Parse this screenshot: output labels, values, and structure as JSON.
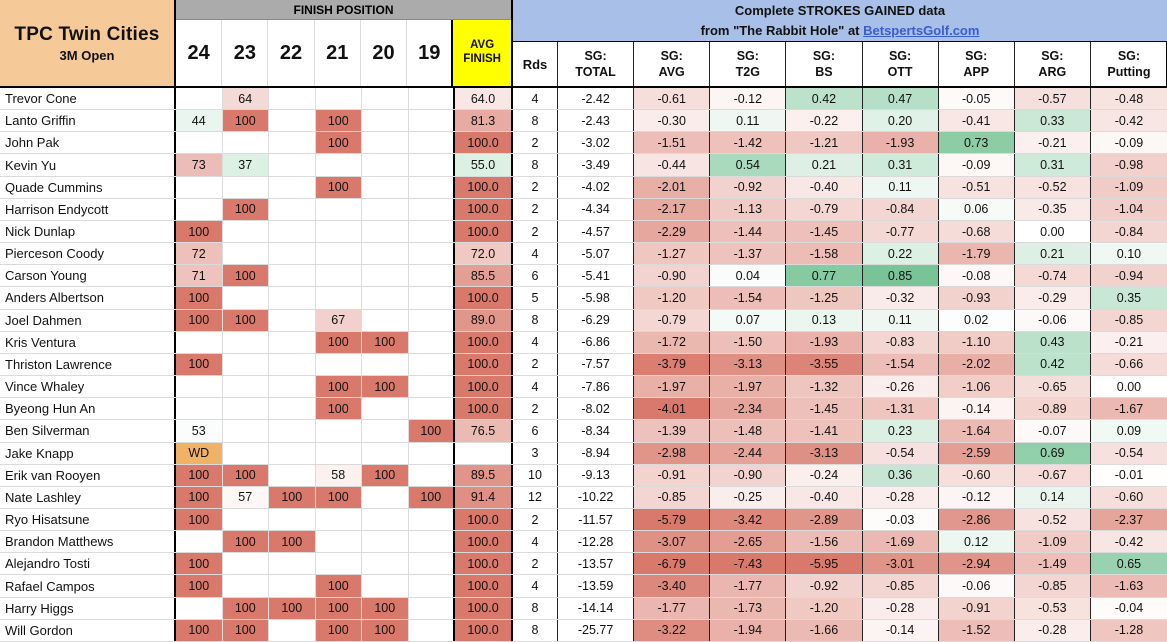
{
  "title_block": {
    "course": "TPC Twin Cities",
    "event": "3M Open"
  },
  "finish_section": {
    "header": "FINISH POSITION",
    "years": [
      "24",
      "23",
      "22",
      "21",
      "20",
      "19"
    ],
    "avg_label_line1": "AVG",
    "avg_label_line2": "FINISH"
  },
  "sg_section": {
    "banner_line1": "Complete STROKES GAINED data",
    "banner_line2_prefix": "from \"The Rabbit Hole\" at ",
    "banner_link": "BetspertsGolf.com",
    "columns": [
      {
        "l1": "Rds",
        "l2": ""
      },
      {
        "l1": "SG:",
        "l2": "TOTAL"
      },
      {
        "l1": "SG:",
        "l2": "AVG"
      },
      {
        "l1": "SG:",
        "l2": "T2G"
      },
      {
        "l1": "SG:",
        "l2": "BS"
      },
      {
        "l1": "SG:",
        "l2": "OTT"
      },
      {
        "l1": "SG:",
        "l2": "APP"
      },
      {
        "l1": "SG:",
        "l2": "ARG"
      },
      {
        "l1": "SG:",
        "l2": "Putting"
      }
    ]
  },
  "colors": {
    "tan": "#F6C998",
    "gray_bar": "#ABABAB",
    "yellow": "#FFFF00",
    "blue_banner": "#A8BFE8",
    "link_blue": "#3A5FCD",
    "heat_red": "#D9796B",
    "heat_green": "#52B379",
    "wd_orange": "#EFB266",
    "white": "#FFFFFF"
  },
  "players": [
    {
      "name": "Trevor Cone",
      "finish": {
        "23": "64"
      },
      "avg": "64.0",
      "rds": "4",
      "sg": {
        "total": "-2.42",
        "avg": "-0.61",
        "t2g": "-0.12",
        "bs": "0.42",
        "ott": "0.47",
        "app": "-0.05",
        "arg": "-0.57",
        "putting": "-0.48"
      }
    },
    {
      "name": "Lanto Griffin",
      "finish": {
        "24": "44",
        "23": "100",
        "21": "100"
      },
      "avg": "81.3",
      "rds": "8",
      "sg": {
        "total": "-2.43",
        "avg": "-0.30",
        "t2g": "0.11",
        "bs": "-0.22",
        "ott": "0.20",
        "app": "-0.41",
        "arg": "0.33",
        "putting": "-0.42"
      }
    },
    {
      "name": "John Pak",
      "finish": {
        "21": "100"
      },
      "avg": "100.0",
      "rds": "2",
      "sg": {
        "total": "-3.02",
        "avg": "-1.51",
        "t2g": "-1.42",
        "bs": "-1.21",
        "ott": "-1.93",
        "app": "0.73",
        "arg": "-0.21",
        "putting": "-0.09"
      }
    },
    {
      "name": "Kevin Yu",
      "finish": {
        "24": "73",
        "23": "37"
      },
      "avg": "55.0",
      "rds": "8",
      "sg": {
        "total": "-3.49",
        "avg": "-0.44",
        "t2g": "0.54",
        "bs": "0.21",
        "ott": "0.31",
        "app": "-0.09",
        "arg": "0.31",
        "putting": "-0.98"
      }
    },
    {
      "name": "Quade Cummins",
      "finish": {
        "21": "100"
      },
      "avg": "100.0",
      "rds": "2",
      "sg": {
        "total": "-4.02",
        "avg": "-2.01",
        "t2g": "-0.92",
        "bs": "-0.40",
        "ott": "0.11",
        "app": "-0.51",
        "arg": "-0.52",
        "putting": "-1.09"
      }
    },
    {
      "name": "Harrison Endycott",
      "finish": {
        "23": "100"
      },
      "avg": "100.0",
      "rds": "2",
      "sg": {
        "total": "-4.34",
        "avg": "-2.17",
        "t2g": "-1.13",
        "bs": "-0.79",
        "ott": "-0.84",
        "app": "0.06",
        "arg": "-0.35",
        "putting": "-1.04"
      }
    },
    {
      "name": "Nick Dunlap",
      "finish": {
        "24": "100"
      },
      "avg": "100.0",
      "rds": "2",
      "sg": {
        "total": "-4.57",
        "avg": "-2.29",
        "t2g": "-1.44",
        "bs": "-1.45",
        "ott": "-0.77",
        "app": "-0.68",
        "arg": "0.00",
        "putting": "-0.84"
      }
    },
    {
      "name": "Pierceson Coody",
      "finish": {
        "24": "72"
      },
      "avg": "72.0",
      "rds": "4",
      "sg": {
        "total": "-5.07",
        "avg": "-1.27",
        "t2g": "-1.37",
        "bs": "-1.58",
        "ott": "0.22",
        "app": "-1.79",
        "arg": "0.21",
        "putting": "0.10"
      }
    },
    {
      "name": "Carson Young",
      "finish": {
        "24": "71",
        "23": "100"
      },
      "avg": "85.5",
      "rds": "6",
      "sg": {
        "total": "-5.41",
        "avg": "-0.90",
        "t2g": "0.04",
        "bs": "0.77",
        "ott": "0.85",
        "app": "-0.08",
        "arg": "-0.74",
        "putting": "-0.94"
      }
    },
    {
      "name": "Anders Albertson",
      "finish": {
        "24": "100"
      },
      "avg": "100.0",
      "rds": "5",
      "sg": {
        "total": "-5.98",
        "avg": "-1.20",
        "t2g": "-1.54",
        "bs": "-1.25",
        "ott": "-0.32",
        "app": "-0.93",
        "arg": "-0.29",
        "putting": "0.35"
      }
    },
    {
      "name": "Joel Dahmen",
      "finish": {
        "24": "100",
        "23": "100",
        "21": "67"
      },
      "avg": "89.0",
      "rds": "8",
      "sg": {
        "total": "-6.29",
        "avg": "-0.79",
        "t2g": "0.07",
        "bs": "0.13",
        "ott": "0.11",
        "app": "0.02",
        "arg": "-0.06",
        "putting": "-0.85"
      }
    },
    {
      "name": "Kris Ventura",
      "finish": {
        "21": "100",
        "20": "100"
      },
      "avg": "100.0",
      "rds": "4",
      "sg": {
        "total": "-6.86",
        "avg": "-1.72",
        "t2g": "-1.50",
        "bs": "-1.93",
        "ott": "-0.83",
        "app": "-1.10",
        "arg": "0.43",
        "putting": "-0.21"
      }
    },
    {
      "name": "Thriston Lawrence",
      "finish": {
        "24": "100"
      },
      "avg": "100.0",
      "rds": "2",
      "sg": {
        "total": "-7.57",
        "avg": "-3.79",
        "t2g": "-3.13",
        "bs": "-3.55",
        "ott": "-1.54",
        "app": "-2.02",
        "arg": "0.42",
        "putting": "-0.66"
      }
    },
    {
      "name": "Vince Whaley",
      "finish": {
        "21": "100",
        "20": "100"
      },
      "avg": "100.0",
      "rds": "4",
      "sg": {
        "total": "-7.86",
        "avg": "-1.97",
        "t2g": "-1.97",
        "bs": "-1.32",
        "ott": "-0.26",
        "app": "-1.06",
        "arg": "-0.65",
        "putting": "0.00"
      }
    },
    {
      "name": "Byeong Hun An",
      "finish": {
        "21": "100"
      },
      "avg": "100.0",
      "rds": "2",
      "sg": {
        "total": "-8.02",
        "avg": "-4.01",
        "t2g": "-2.34",
        "bs": "-1.45",
        "ott": "-1.31",
        "app": "-0.14",
        "arg": "-0.89",
        "putting": "-1.67"
      }
    },
    {
      "name": "Ben Silverman",
      "finish": {
        "24": "53",
        "19": "100"
      },
      "avg": "76.5",
      "rds": "6",
      "sg": {
        "total": "-8.34",
        "avg": "-1.39",
        "t2g": "-1.48",
        "bs": "-1.41",
        "ott": "0.23",
        "app": "-1.64",
        "arg": "-0.07",
        "putting": "0.09"
      }
    },
    {
      "name": "Jake Knapp",
      "finish": {
        "24": "WD"
      },
      "avg": "",
      "rds": "3",
      "sg": {
        "total": "-8.94",
        "avg": "-2.98",
        "t2g": "-2.44",
        "bs": "-3.13",
        "ott": "-0.54",
        "app": "-2.59",
        "arg": "0.69",
        "putting": "-0.54"
      }
    },
    {
      "name": "Erik van Rooyen",
      "finish": {
        "24": "100",
        "23": "100",
        "21": "58",
        "20": "100"
      },
      "avg": "89.5",
      "rds": "10",
      "sg": {
        "total": "-9.13",
        "avg": "-0.91",
        "t2g": "-0.90",
        "bs": "-0.24",
        "ott": "0.36",
        "app": "-0.60",
        "arg": "-0.67",
        "putting": "-0.01"
      }
    },
    {
      "name": "Nate Lashley",
      "finish": {
        "24": "100",
        "23": "57",
        "22": "100",
        "21": "100",
        "19": "100"
      },
      "avg": "91.4",
      "rds": "12",
      "sg": {
        "total": "-10.22",
        "avg": "-0.85",
        "t2g": "-0.25",
        "bs": "-0.40",
        "ott": "-0.28",
        "app": "-0.12",
        "arg": "0.14",
        "putting": "-0.60"
      }
    },
    {
      "name": "Ryo Hisatsune",
      "finish": {
        "24": "100"
      },
      "avg": "100.0",
      "rds": "2",
      "sg": {
        "total": "-11.57",
        "avg": "-5.79",
        "t2g": "-3.42",
        "bs": "-2.89",
        "ott": "-0.03",
        "app": "-2.86",
        "arg": "-0.52",
        "putting": "-2.37"
      }
    },
    {
      "name": "Brandon Matthews",
      "finish": {
        "23": "100",
        "22": "100"
      },
      "avg": "100.0",
      "rds": "4",
      "sg": {
        "total": "-12.28",
        "avg": "-3.07",
        "t2g": "-2.65",
        "bs": "-1.56",
        "ott": "-1.69",
        "app": "0.12",
        "arg": "-1.09",
        "putting": "-0.42"
      }
    },
    {
      "name": "Alejandro Tosti",
      "finish": {
        "24": "100"
      },
      "avg": "100.0",
      "rds": "2",
      "sg": {
        "total": "-13.57",
        "avg": "-6.79",
        "t2g": "-7.43",
        "bs": "-5.95",
        "ott": "-3.01",
        "app": "-2.94",
        "arg": "-1.49",
        "putting": "0.65"
      }
    },
    {
      "name": "Rafael Campos",
      "finish": {
        "24": "100",
        "21": "100"
      },
      "avg": "100.0",
      "rds": "4",
      "sg": {
        "total": "-13.59",
        "avg": "-3.40",
        "t2g": "-1.77",
        "bs": "-0.92",
        "ott": "-0.85",
        "app": "-0.06",
        "arg": "-0.85",
        "putting": "-1.63"
      }
    },
    {
      "name": "Harry Higgs",
      "finish": {
        "23": "100",
        "22": "100",
        "21": "100",
        "20": "100"
      },
      "avg": "100.0",
      "rds": "8",
      "sg": {
        "total": "-14.14",
        "avg": "-1.77",
        "t2g": "-1.73",
        "bs": "-1.20",
        "ott": "-0.28",
        "app": "-0.91",
        "arg": "-0.53",
        "putting": "-0.04"
      }
    },
    {
      "name": "Will Gordon",
      "finish": {
        "24": "100",
        "23": "100",
        "21": "100",
        "20": "100"
      },
      "avg": "100.0",
      "rds": "8",
      "sg": {
        "total": "-25.77",
        "avg": "-3.22",
        "t2g": "-1.94",
        "bs": "-1.66",
        "ott": "-0.14",
        "app": "-1.52",
        "arg": "-0.28",
        "putting": "-1.28"
      }
    }
  ]
}
